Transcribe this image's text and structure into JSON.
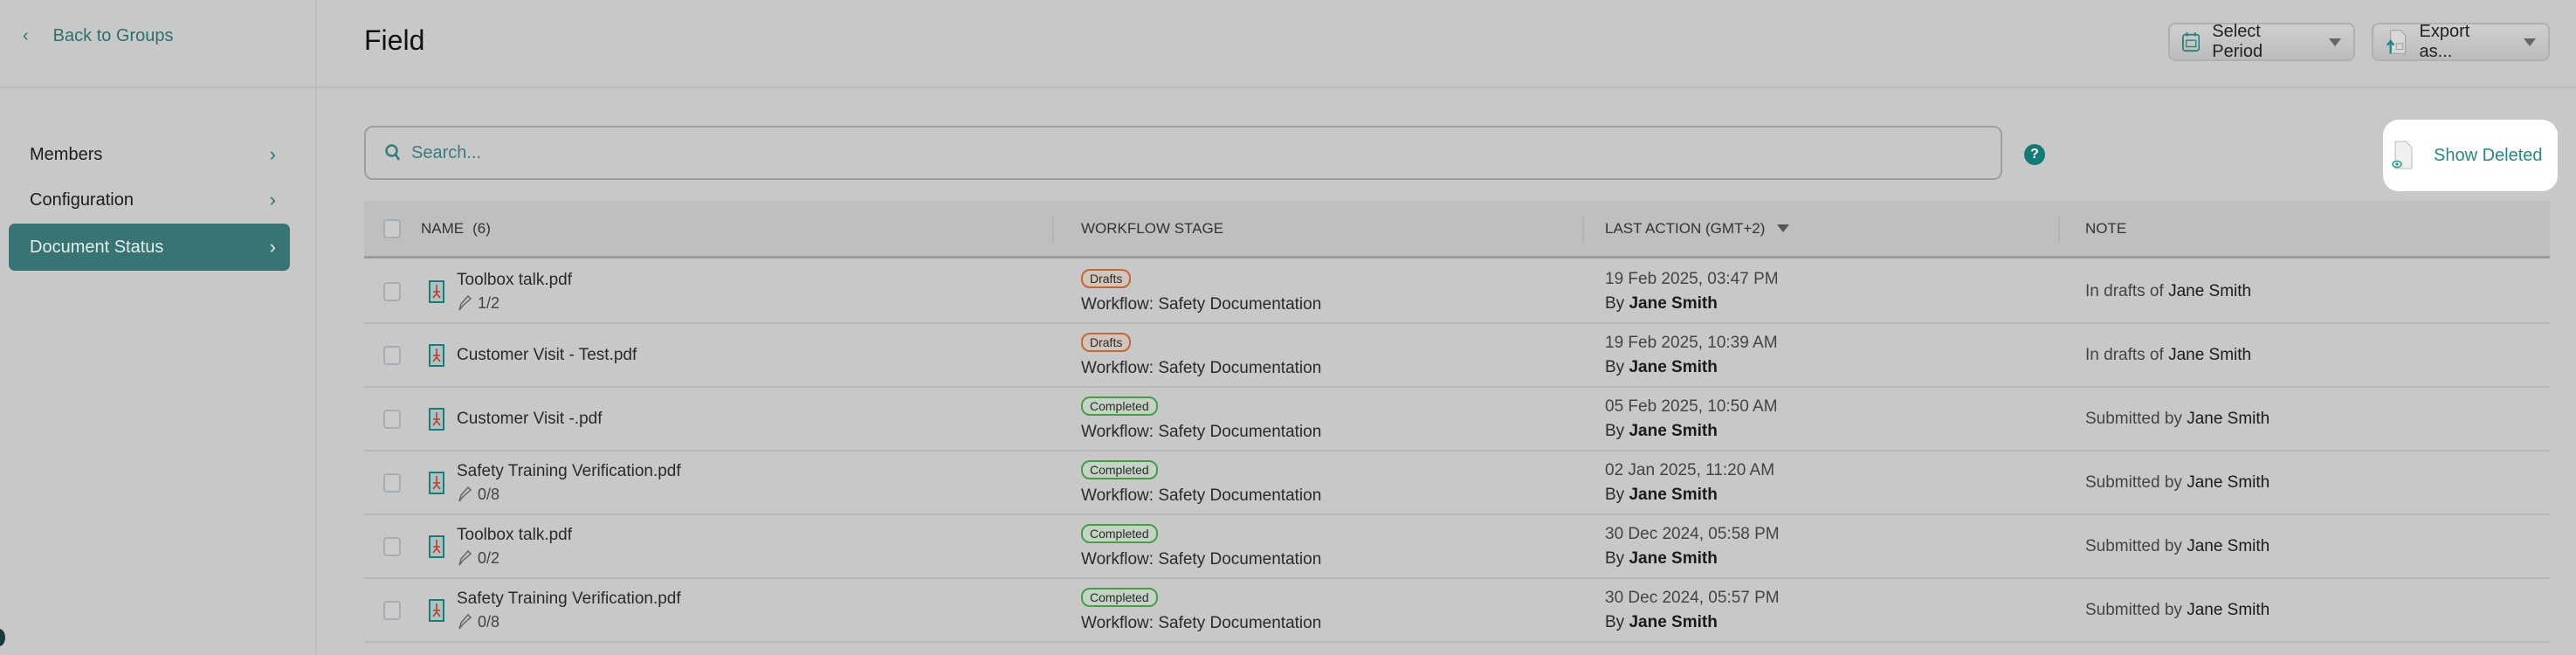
{
  "sidebar": {
    "back_label": "Back to Groups",
    "items": [
      {
        "label": "Members"
      },
      {
        "label": "Configuration"
      },
      {
        "label": "Document Status",
        "active": true
      }
    ]
  },
  "header": {
    "title": "Field",
    "select_period": "Select Period",
    "export": "Export as..."
  },
  "search": {
    "placeholder": "Search..."
  },
  "show_deleted": "Show Deleted",
  "accent": "#377473",
  "table": {
    "headers": {
      "name": "NAME",
      "count": "(6)",
      "stage": "WORKFLOW STAGE",
      "last_action": "LAST ACTION (GMT+2)",
      "note": "NOTE"
    },
    "rows": [
      {
        "name": "Toolbox talk.pdf",
        "sign": "1/2",
        "stage": "Drafts",
        "workflow": "Workflow: Safety Documentation",
        "date": "19 Feb 2025, 03:47 PM",
        "by": "By",
        "user": "Jane Smith",
        "note": "In drafts of",
        "note_user": "Jane Smith"
      },
      {
        "name": "Customer Visit - Test.pdf",
        "sign": "",
        "stage": "Drafts",
        "workflow": "Workflow: Safety Documentation",
        "date": "19 Feb 2025, 10:39 AM",
        "by": "By",
        "user": "Jane Smith",
        "note": "In drafts of",
        "note_user": "Jane Smith"
      },
      {
        "name": "Customer Visit -.pdf",
        "sign": "",
        "stage": "Completed",
        "workflow": "Workflow: Safety Documentation",
        "date": "05 Feb 2025, 10:50 AM",
        "by": "By",
        "user": "Jane Smith",
        "note": "Submitted by",
        "note_user": "Jane Smith"
      },
      {
        "name": "Safety Training Verification.pdf",
        "sign": "0/8",
        "stage": "Completed",
        "workflow": "Workflow: Safety Documentation",
        "date": "02 Jan 2025, 11:20 AM",
        "by": "By",
        "user": "Jane Smith",
        "note": "Submitted by",
        "note_user": "Jane Smith"
      },
      {
        "name": "Toolbox talk.pdf",
        "sign": "0/2",
        "stage": "Completed",
        "workflow": "Workflow: Safety Documentation",
        "date": "30 Dec 2024, 05:58 PM",
        "by": "By",
        "user": "Jane Smith",
        "note": "Submitted by",
        "note_user": "Jane Smith"
      },
      {
        "name": "Safety Training Verification.pdf",
        "sign": "0/8",
        "stage": "Completed",
        "workflow": "Workflow: Safety Documentation",
        "date": "30 Dec 2024, 05:57 PM",
        "by": "By",
        "user": "Jane Smith",
        "note": "Submitted by",
        "note_user": "Jane Smith"
      }
    ]
  }
}
